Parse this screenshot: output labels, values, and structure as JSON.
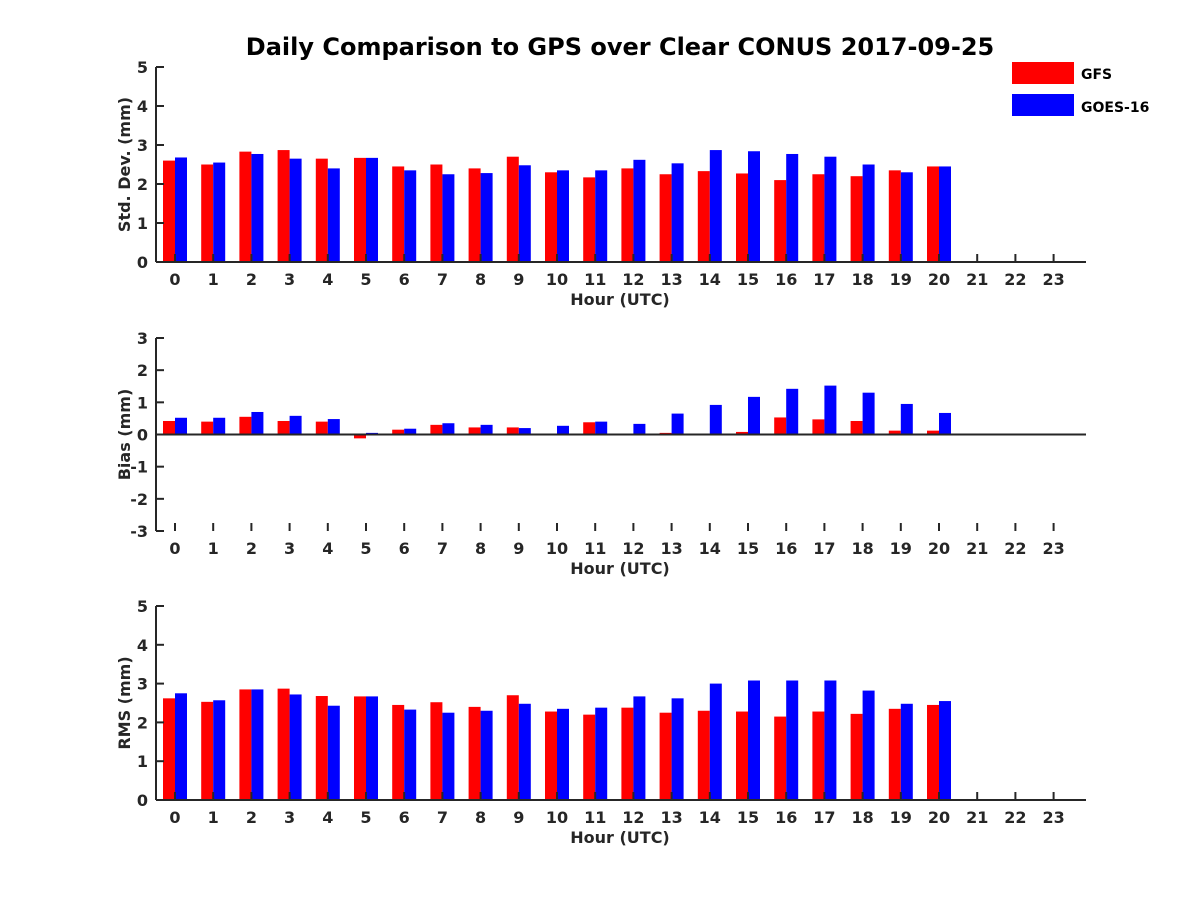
{
  "chart_data": {
    "title": "Daily Comparison to GPS over Clear CONUS 2017-09-25",
    "legend": {
      "position": "top-right",
      "entries": [
        {
          "name": "GFS",
          "color": "#ff0000"
        },
        {
          "name": "GOES-16",
          "color": "#0000ff"
        }
      ]
    },
    "panels": [
      {
        "type": "bar",
        "ylabel": "Std. Dev. (mm)",
        "xlabel": "Hour (UTC)",
        "ylim": [
          0,
          5
        ],
        "yticks": [
          "0",
          "1",
          "2",
          "3",
          "4",
          "5"
        ],
        "categories": [
          "0",
          "1",
          "2",
          "3",
          "4",
          "5",
          "6",
          "7",
          "8",
          "9",
          "10",
          "11",
          "12",
          "13",
          "14",
          "15",
          "16",
          "17",
          "18",
          "19",
          "20",
          "21",
          "22",
          "23"
        ],
        "series": [
          {
            "name": "GFS",
            "values": [
              2.6,
              2.5,
              2.83,
              2.87,
              2.65,
              2.67,
              2.45,
              2.5,
              2.4,
              2.7,
              2.3,
              2.17,
              2.4,
              2.25,
              2.33,
              2.27,
              2.1,
              2.25,
              2.2,
              2.35,
              2.45,
              null,
              null,
              null
            ]
          },
          {
            "name": "GOES-16",
            "values": [
              2.68,
              2.55,
              2.77,
              2.65,
              2.4,
              2.67,
              2.35,
              2.25,
              2.28,
              2.48,
              2.35,
              2.35,
              2.62,
              2.53,
              2.87,
              2.84,
              2.77,
              2.7,
              2.5,
              2.3,
              2.45,
              null,
              null,
              null
            ]
          }
        ]
      },
      {
        "type": "bar",
        "ylabel": "Bias (mm)",
        "xlabel": "Hour (UTC)",
        "ylim": [
          -3,
          3
        ],
        "yticks": [
          "-3",
          "-2",
          "-1",
          "0",
          "1",
          "2",
          "3"
        ],
        "categories": [
          "0",
          "1",
          "2",
          "3",
          "4",
          "5",
          "6",
          "7",
          "8",
          "9",
          "10",
          "11",
          "12",
          "13",
          "14",
          "15",
          "16",
          "17",
          "18",
          "19",
          "20",
          "21",
          "22",
          "23"
        ],
        "series": [
          {
            "name": "GFS",
            "values": [
              0.42,
              0.4,
              0.55,
              0.42,
              0.4,
              -0.12,
              0.15,
              0.3,
              0.22,
              0.22,
              0.02,
              0.38,
              0.0,
              0.05,
              0.0,
              0.08,
              0.53,
              0.47,
              0.42,
              0.12,
              0.12,
              null,
              null,
              null
            ]
          },
          {
            "name": "GOES-16",
            "values": [
              0.52,
              0.52,
              0.7,
              0.58,
              0.48,
              0.05,
              0.18,
              0.35,
              0.3,
              0.2,
              0.27,
              0.4,
              0.33,
              0.65,
              0.92,
              1.17,
              1.42,
              1.52,
              1.3,
              0.95,
              0.67,
              null,
              null,
              null
            ]
          }
        ]
      },
      {
        "type": "bar",
        "ylabel": "RMS (mm)",
        "xlabel": "Hour (UTC)",
        "ylim": [
          0,
          5
        ],
        "yticks": [
          "0",
          "1",
          "2",
          "3",
          "4",
          "5"
        ],
        "categories": [
          "0",
          "1",
          "2",
          "3",
          "4",
          "5",
          "6",
          "7",
          "8",
          "9",
          "10",
          "11",
          "12",
          "13",
          "14",
          "15",
          "16",
          "17",
          "18",
          "19",
          "20",
          "21",
          "22",
          "23"
        ],
        "series": [
          {
            "name": "GFS",
            "values": [
              2.62,
              2.53,
              2.85,
              2.87,
              2.68,
              2.67,
              2.45,
              2.52,
              2.4,
              2.7,
              2.28,
              2.2,
              2.38,
              2.25,
              2.3,
              2.28,
              2.15,
              2.28,
              2.22,
              2.35,
              2.45,
              null,
              null,
              null
            ]
          },
          {
            "name": "GOES-16",
            "values": [
              2.75,
              2.57,
              2.85,
              2.72,
              2.43,
              2.67,
              2.33,
              2.25,
              2.3,
              2.48,
              2.35,
              2.38,
              2.67,
              2.62,
              3.0,
              3.08,
              3.08,
              3.08,
              2.82,
              2.48,
              2.55,
              null,
              null,
              null
            ]
          }
        ]
      }
    ]
  }
}
